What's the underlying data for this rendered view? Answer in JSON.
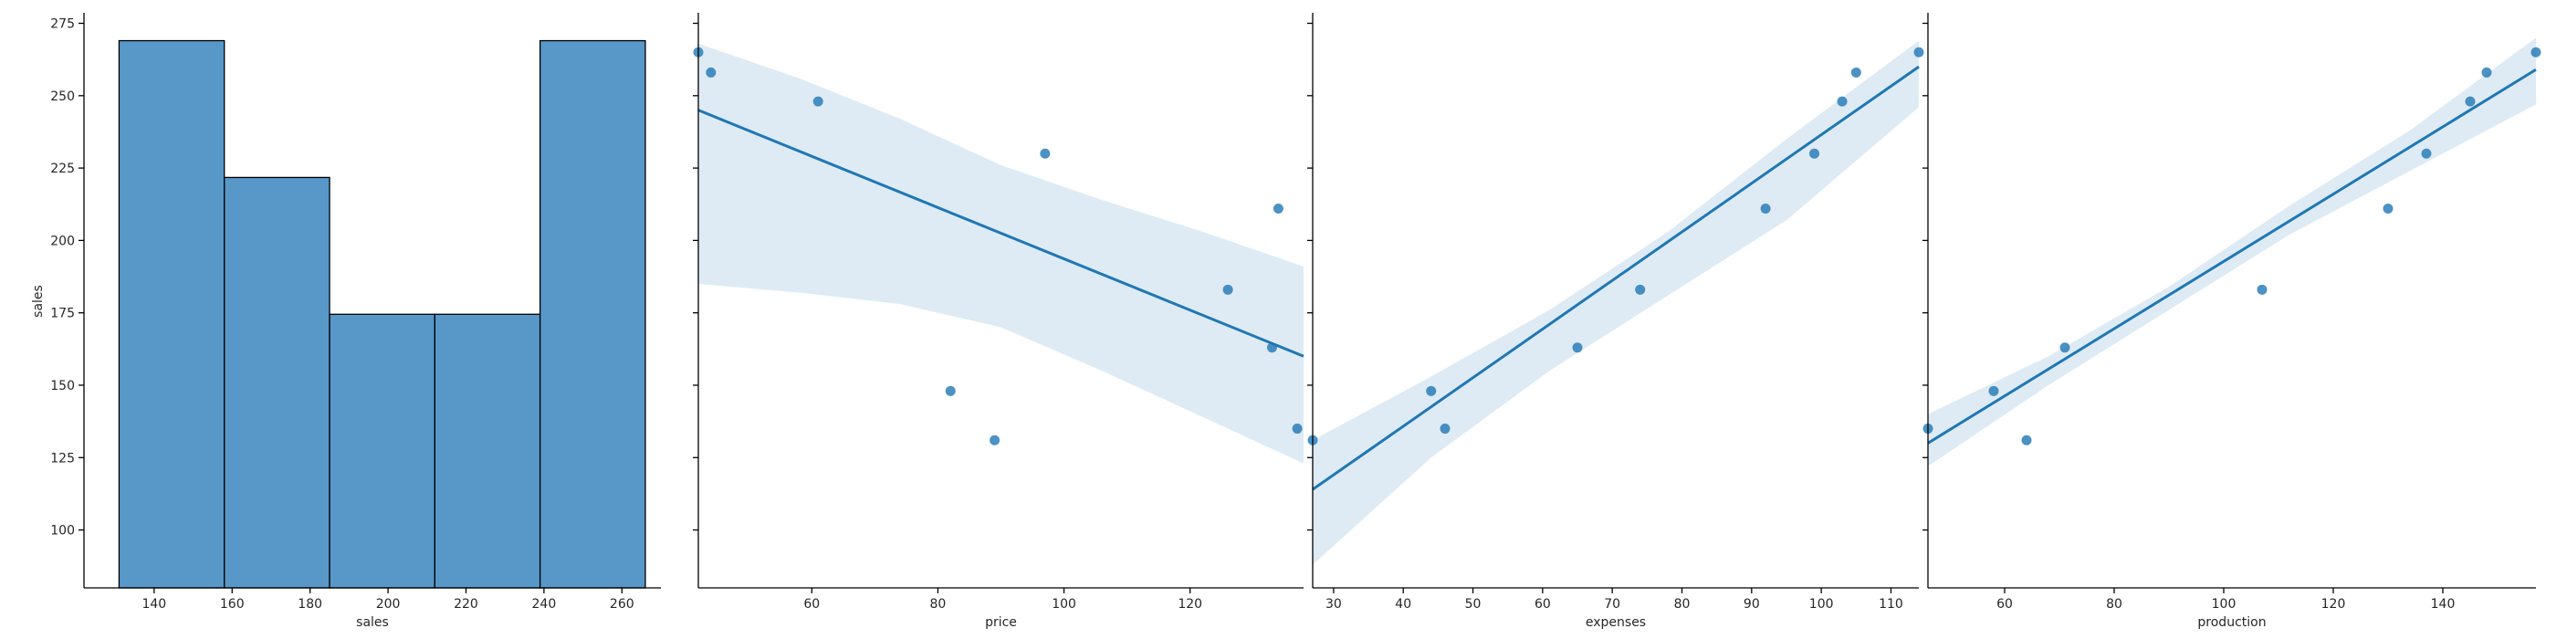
{
  "chart_data": {
    "type": "pairplot-row",
    "y_variable": "sales",
    "ylabel": "sales",
    "ylim": [
      80,
      278
    ],
    "yticks": [
      100,
      125,
      150,
      175,
      200,
      225,
      250,
      275
    ],
    "colors": {
      "marks": "#1f77b4",
      "hist": "#3a86bf",
      "band": "#1f77b4",
      "axis": "#000000"
    },
    "panels": [
      {
        "type": "bar",
        "subtype": "histogram",
        "xlabel": "sales",
        "xlim": [
          122,
          270
        ],
        "xticks": [
          140,
          160,
          180,
          200,
          220,
          240,
          260
        ],
        "bins": [
          {
            "x0": 131,
            "x1": 158,
            "value": 4
          },
          {
            "x0": 158,
            "x1": 185,
            "value": 3
          },
          {
            "x0": 185,
            "x1": 212,
            "value": 2
          },
          {
            "x0": 212,
            "x1": 239,
            "value": 2
          },
          {
            "x0": 239,
            "x1": 266,
            "value": 4
          }
        ],
        "count_max": 4,
        "count_top_in_y_units": 269
      },
      {
        "type": "scatter",
        "subtype": "regression",
        "xlabel": "price",
        "xlim": [
          42,
          138
        ],
        "xticks": [
          60,
          80,
          100,
          120
        ],
        "points": [
          {
            "x": 42,
            "y": 265
          },
          {
            "x": 44,
            "y": 258
          },
          {
            "x": 61,
            "y": 248
          },
          {
            "x": 97,
            "y": 230
          },
          {
            "x": 134,
            "y": 211
          },
          {
            "x": 126,
            "y": 183
          },
          {
            "x": 133,
            "y": 163
          },
          {
            "x": 82,
            "y": 148
          },
          {
            "x": 89,
            "y": 131
          },
          {
            "x": 137,
            "y": 135
          }
        ],
        "fit": {
          "x": [
            42,
            138
          ],
          "y": [
            245,
            160
          ]
        },
        "ci_band": {
          "x": [
            42,
            58,
            74,
            90,
            106,
            122,
            138
          ],
          "lower": [
            185,
            182,
            178,
            170,
            155,
            139,
            123
          ],
          "upper": [
            268,
            256,
            242,
            226,
            214,
            203,
            191
          ]
        }
      },
      {
        "type": "scatter",
        "subtype": "regression",
        "xlabel": "expenses",
        "xlim": [
          27,
          114
        ],
        "xticks": [
          30,
          40,
          50,
          60,
          70,
          80,
          90,
          100,
          110
        ],
        "points": [
          {
            "x": 27,
            "y": 131
          },
          {
            "x": 44,
            "y": 148
          },
          {
            "x": 46,
            "y": 135
          },
          {
            "x": 65,
            "y": 163
          },
          {
            "x": 74,
            "y": 183
          },
          {
            "x": 92,
            "y": 211
          },
          {
            "x": 99,
            "y": 230
          },
          {
            "x": 103,
            "y": 248
          },
          {
            "x": 105,
            "y": 258
          },
          {
            "x": 114,
            "y": 265
          }
        ],
        "fit": {
          "x": [
            27,
            114
          ],
          "y": [
            114,
            260
          ]
        },
        "ci_band": {
          "x": [
            27,
            44,
            61,
            78,
            95,
            114
          ],
          "lower": [
            88,
            125,
            155,
            181,
            207,
            246
          ],
          "upper": [
            131,
            153,
            176,
            203,
            235,
            269
          ]
        }
      },
      {
        "type": "scatter",
        "subtype": "regression",
        "xlabel": "production",
        "xlim": [
          46,
          157
        ],
        "xticks": [
          60,
          80,
          100,
          120,
          140
        ],
        "points": [
          {
            "x": 46,
            "y": 135
          },
          {
            "x": 58,
            "y": 148
          },
          {
            "x": 64,
            "y": 131
          },
          {
            "x": 71,
            "y": 163
          },
          {
            "x": 107,
            "y": 183
          },
          {
            "x": 130,
            "y": 211
          },
          {
            "x": 137,
            "y": 230
          },
          {
            "x": 145,
            "y": 248
          },
          {
            "x": 148,
            "y": 258
          },
          {
            "x": 157,
            "y": 265
          }
        ],
        "fit": {
          "x": [
            46,
            157
          ],
          "y": [
            130,
            259
          ]
        },
        "ci_band": {
          "x": [
            46,
            68,
            90,
            112,
            134,
            157
          ],
          "lower": [
            122,
            150,
            176,
            202,
            224,
            247
          ],
          "upper": [
            140,
            160,
            184,
            212,
            238,
            270
          ]
        }
      }
    ]
  }
}
